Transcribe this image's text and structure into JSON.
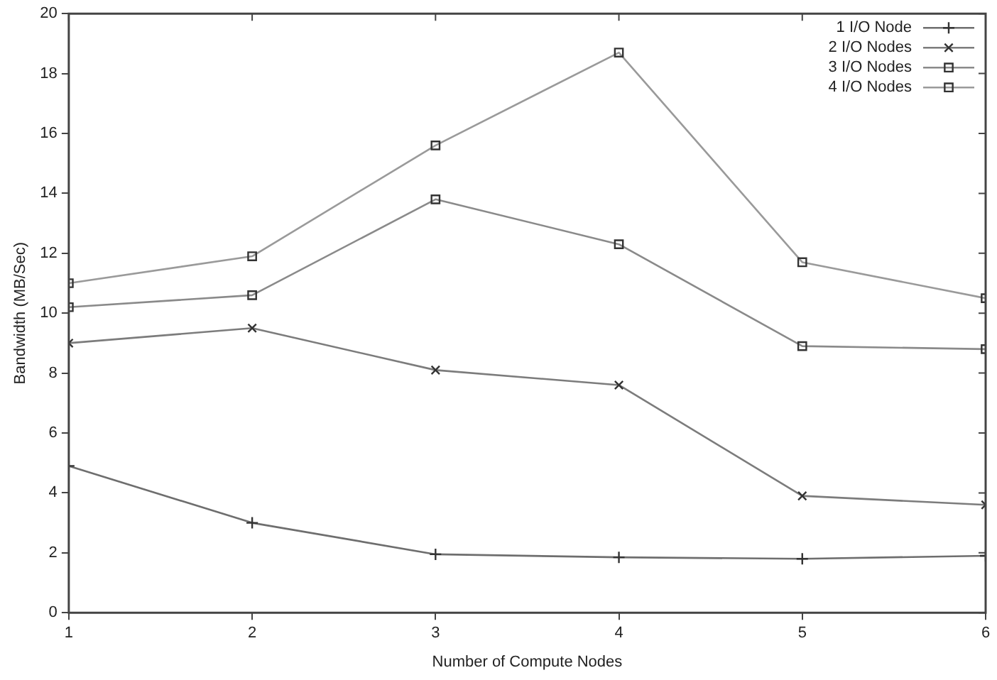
{
  "chart_data": {
    "type": "line",
    "xlabel": "Number of Compute Nodes",
    "ylabel": "Bandwidth (MB/Sec)",
    "x": [
      1,
      2,
      3,
      4,
      5,
      6
    ],
    "xlim": [
      1,
      6
    ],
    "xticks": [
      1,
      2,
      3,
      4,
      5,
      6
    ],
    "ylim": [
      0,
      20
    ],
    "yticks": [
      0,
      2,
      4,
      6,
      8,
      10,
      12,
      14,
      16,
      18,
      20
    ],
    "grid": false,
    "legend": "top right",
    "line_style": "solid",
    "series": [
      {
        "name": "1 I/O Node",
        "color": "#6e6e6e",
        "marker": "cross",
        "values": [
          4.9,
          3.0,
          1.95,
          1.85,
          1.8,
          1.9
        ]
      },
      {
        "name": "2 I/O Nodes",
        "color": "#7c7c7c",
        "marker": "cross",
        "values": [
          9.0,
          9.5,
          8.1,
          7.6,
          3.9,
          3.6
        ]
      },
      {
        "name": "3 I/O Nodes",
        "color": "#8a8a8a",
        "marker": "square",
        "values": [
          10.2,
          10.6,
          13.8,
          12.3,
          8.9,
          8.8
        ]
      },
      {
        "name": "4 I/O Nodes",
        "color": "#9a9a9a",
        "marker": "square",
        "values": [
          11.0,
          11.9,
          15.6,
          18.7,
          11.7,
          10.5
        ]
      }
    ]
  }
}
